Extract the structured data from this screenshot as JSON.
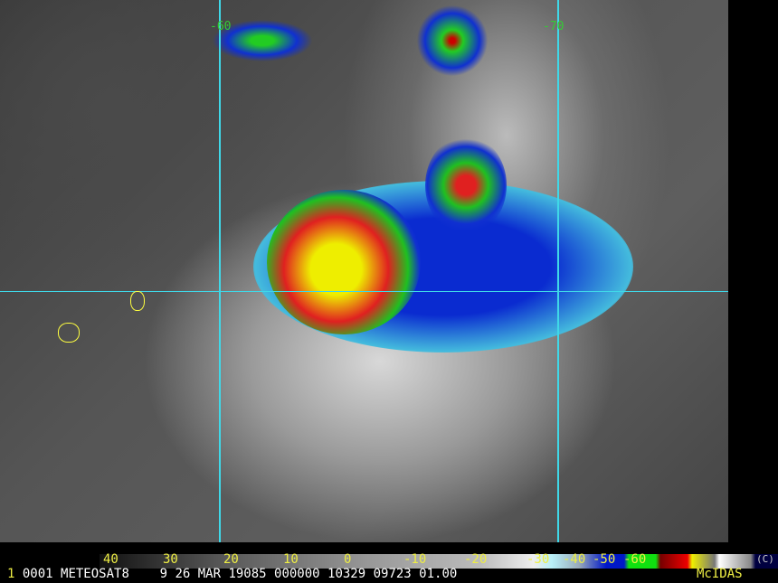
{
  "image": {
    "satellite": "METEOSAT8",
    "grid_labels": [
      "-60",
      "-70"
    ],
    "grid_color": "#3fd8e8",
    "coast_color": "#ffff40"
  },
  "colorbar": {
    "ticks": [
      "40",
      "30",
      "20",
      "10",
      "0",
      "-10",
      "-20",
      "-30",
      "-40",
      "-50",
      "-60"
    ],
    "unit": "(C)"
  },
  "footer": {
    "frame": "1",
    "fields": "0001 METEOSAT8    9 26 MAR 19085 000000 10329 09723 01.00",
    "brand": "McIDAS"
  }
}
